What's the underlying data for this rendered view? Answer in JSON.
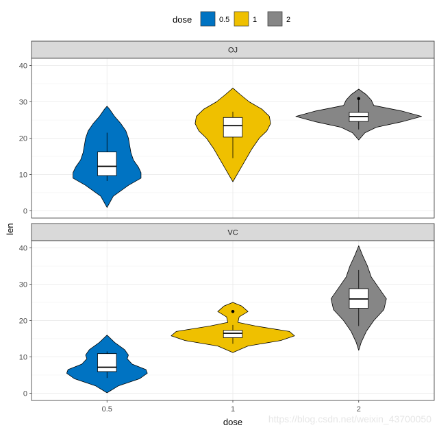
{
  "chart_data": {
    "type": "violin",
    "xlabel": "dose",
    "ylabel": "len",
    "categories": [
      "0.5",
      "1",
      "2"
    ],
    "ylim": [
      -2,
      42
    ],
    "yticks": [
      0,
      10,
      20,
      30,
      40
    ],
    "legend": {
      "title": "dose",
      "position": "top",
      "entries": [
        {
          "label": "0.5",
          "color": "#0073C2"
        },
        {
          "label": "1",
          "color": "#EFC000"
        },
        {
          "label": "2",
          "color": "#868686"
        }
      ]
    },
    "grid": true,
    "panels": [
      {
        "label": "OJ",
        "groups": [
          {
            "dose": "0.5",
            "color": "#0073C2",
            "box": {
              "whisker_low": 8.2,
              "q1": 9.7,
              "median": 12.25,
              "q3": 16.2,
              "whisker_high": 21.5
            },
            "outliers": [],
            "violin": {
              "y": [
                0.9,
                4.0,
                7.0,
                9.0,
                10.5,
                12.0,
                14.0,
                16.0,
                18.0,
                20.0,
                22.0,
                24.0,
                26.0,
                28.0,
                28.8
              ],
              "half_width": [
                0.0,
                0.05,
                0.17,
                0.27,
                0.27,
                0.25,
                0.21,
                0.19,
                0.18,
                0.17,
                0.15,
                0.11,
                0.06,
                0.02,
                0.0
              ]
            }
          },
          {
            "dose": "1",
            "color": "#EFC000",
            "box": {
              "whisker_low": 14.5,
              "q1": 20.3,
              "median": 23.45,
              "q3": 25.7,
              "whisker_high": 27.3
            },
            "outliers": [],
            "violin": {
              "y": [
                8.0,
                11.0,
                14.0,
                17.0,
                20.0,
                22.0,
                24.0,
                26.0,
                28.0,
                30.0,
                32.0,
                33.8
              ],
              "half_width": [
                0.0,
                0.05,
                0.1,
                0.15,
                0.21,
                0.27,
                0.3,
                0.29,
                0.23,
                0.13,
                0.06,
                0.0
              ]
            }
          },
          {
            "dose": "2",
            "color": "#868686",
            "box": {
              "whisker_low": 22.4,
              "q1": 24.6,
              "median": 25.95,
              "q3": 27.1,
              "whisker_high": 30.9
            },
            "outliers": [
              30.9
            ],
            "violin": {
              "y": [
                19.5,
                21.5,
                23.0,
                24.5,
                26.0,
                27.5,
                29.0,
                30.5,
                32.0,
                33.5
              ],
              "half_width": [
                0.0,
                0.05,
                0.14,
                0.34,
                0.5,
                0.34,
                0.12,
                0.1,
                0.06,
                0.0
              ]
            }
          }
        ]
      },
      {
        "label": "VC",
        "groups": [
          {
            "dose": "0.5",
            "color": "#0073C2",
            "box": {
              "whisker_low": 4.2,
              "q1": 5.95,
              "median": 7.15,
              "q3": 10.9,
              "whisker_high": 11.5
            },
            "outliers": [],
            "violin": {
              "y": [
                0.1,
                2.0,
                4.0,
                5.5,
                6.5,
                8.0,
                9.5,
                10.5,
                12.0,
                14.0,
                16.0
              ],
              "half_width": [
                0.0,
                0.09,
                0.26,
                0.32,
                0.31,
                0.2,
                0.16,
                0.17,
                0.14,
                0.06,
                0.0
              ]
            }
          },
          {
            "dose": "1",
            "color": "#EFC000",
            "box": {
              "whisker_low": 13.6,
              "q1": 15.3,
              "median": 16.5,
              "q3": 17.3,
              "whisker_high": 18.8
            },
            "outliers": [
              22.5
            ],
            "violin": {
              "y": [
                11.2,
                13.0,
                14.5,
                15.8,
                17.0,
                18.5,
                19.5,
                21.0,
                22.5,
                24.0,
                25.0
              ],
              "half_width": [
                0.0,
                0.12,
                0.38,
                0.49,
                0.45,
                0.18,
                0.04,
                0.05,
                0.12,
                0.07,
                0.0
              ]
            }
          },
          {
            "dose": "2",
            "color": "#868686",
            "box": {
              "whisker_low": 18.5,
              "q1": 23.4,
              "median": 25.95,
              "q3": 28.8,
              "whisker_high": 33.9
            },
            "outliers": [],
            "violin": {
              "y": [
                11.8,
                14.0,
                17.0,
                20.0,
                23.0,
                26.0,
                29.0,
                32.0,
                35.0,
                38.0,
                40.6
              ],
              "half_width": [
                0.0,
                0.02,
                0.06,
                0.12,
                0.2,
                0.22,
                0.16,
                0.1,
                0.07,
                0.03,
                0.0
              ]
            }
          }
        ]
      }
    ]
  },
  "watermark": "https://blog.csdn.net/weixin_43700050"
}
